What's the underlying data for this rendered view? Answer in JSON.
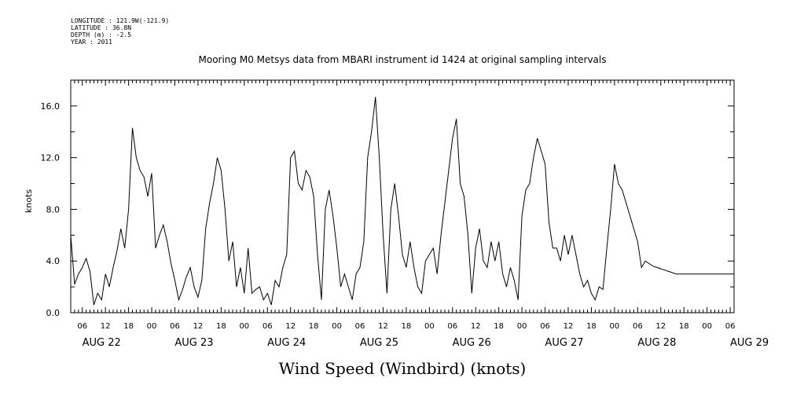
{
  "meta": {
    "longitude": "LONGITUDE : 121.9W(-121.9)",
    "latitude": "LATITUDE : 36.8N",
    "depth": "DEPTH (m) : -2.5",
    "year": "YEAR : 2011"
  },
  "chart_data": {
    "type": "line",
    "title": "Mooring M0 Metsys data from MBARI instrument id 1424 at original sampling intervals",
    "xlabel": "Wind Speed (Windbird) (knots)",
    "ylabel": "knots",
    "ylim": [
      0,
      18
    ],
    "xlim_hours": [
      0,
      172
    ],
    "yticks": [
      "0.0",
      "4.0",
      "8.0",
      "12.0",
      "16.0"
    ],
    "ytick_values": [
      0,
      4,
      8,
      12,
      16
    ],
    "hour_tick_labels": [
      "06",
      "12",
      "18",
      "00",
      "06",
      "12",
      "18",
      "00",
      "06",
      "12",
      "18",
      "00",
      "06",
      "12",
      "18",
      "00",
      "06",
      "12",
      "18",
      "00",
      "06",
      "12",
      "18",
      "00",
      "06",
      "12",
      "18",
      "00",
      "06",
      "12",
      "18",
      "00"
    ],
    "day_labels": [
      "AUG 22",
      "AUG 23",
      "AUG 24",
      "AUG 25",
      "AUG 26",
      "AUG 27",
      "AUG 28",
      "AUG 29"
    ],
    "x_start": "AUG 22 03:00",
    "series": [
      {
        "x_hours": [
          0,
          1,
          2,
          3,
          4,
          5,
          6,
          7,
          8,
          9,
          10,
          11,
          12,
          13,
          14,
          15,
          16,
          17,
          18,
          19,
          20,
          21,
          22,
          23,
          24,
          25,
          26,
          27,
          28,
          29,
          30,
          31,
          32,
          33,
          34,
          35,
          36,
          37,
          38,
          39,
          40,
          41,
          42,
          43,
          44,
          45,
          46,
          47,
          48,
          49,
          50,
          51,
          52,
          53,
          54,
          55,
          56,
          57,
          58,
          59,
          60,
          61,
          62,
          63,
          64,
          65,
          66,
          67,
          68,
          69,
          70,
          71,
          72,
          73,
          74,
          75,
          76,
          77,
          78,
          79,
          80,
          81,
          82,
          83,
          84,
          85,
          86,
          87,
          88,
          89,
          90,
          91,
          92,
          93,
          94,
          95,
          96,
          97,
          98,
          99,
          100,
          101,
          102,
          103,
          104,
          105,
          106,
          107,
          108,
          109,
          110,
          111,
          112,
          113,
          114,
          115,
          116,
          117,
          118,
          119,
          120,
          121,
          122,
          123,
          124,
          125,
          126,
          127,
          128,
          129,
          130,
          131,
          132,
          133,
          134,
          135,
          136,
          137,
          138,
          139,
          140,
          141,
          142,
          143,
          144,
          145,
          146,
          147,
          148,
          149,
          150,
          151,
          152,
          153,
          154,
          155,
          156,
          157,
          158,
          159,
          160,
          161,
          162,
          163,
          164,
          165,
          166,
          167,
          168,
          169,
          170,
          171,
          172
        ],
        "values": [
          6.0,
          2.2,
          3.0,
          3.5,
          4.2,
          3.2,
          0.6,
          1.5,
          1.0,
          3.0,
          2.0,
          3.5,
          4.8,
          6.5,
          5.0,
          8.0,
          14.3,
          12.0,
          11.0,
          10.5,
          9.0,
          10.8,
          5.0,
          6.0,
          6.8,
          5.5,
          3.8,
          2.5,
          1.0,
          1.8,
          2.8,
          3.5,
          2.0,
          1.2,
          2.5,
          6.5,
          8.5,
          10.0,
          12.0,
          11.0,
          8.0,
          4.0,
          5.5,
          2.0,
          3.5,
          1.5,
          5.0,
          1.5,
          1.8,
          2.0,
          1.0,
          1.5,
          0.6,
          2.5,
          2.0,
          3.5,
          4.5,
          12.0,
          12.5,
          10.0,
          9.5,
          11.0,
          10.5,
          9.0,
          4.5,
          1.0,
          8.0,
          9.5,
          7.5,
          5.0,
          2.0,
          3.0,
          2.0,
          1.0,
          3.0,
          3.5,
          5.5,
          12.0,
          14.0,
          16.7,
          12.0,
          6.0,
          1.5,
          8.0,
          10.0,
          7.5,
          4.5,
          3.5,
          5.5,
          3.5,
          2.0,
          1.5,
          4.0,
          4.5,
          5.0,
          3.0,
          6.0,
          8.5,
          11.0,
          13.5,
          15.0,
          10.0,
          9.0,
          6.0,
          1.5,
          5.0,
          6.5,
          4.0,
          3.5,
          5.5,
          4.0,
          5.5,
          3.0,
          2.0,
          3.5,
          2.5,
          1.0,
          7.5,
          9.5,
          10.0,
          12.0,
          13.5,
          12.5,
          11.5,
          7.0,
          5.0,
          5.0,
          4.0,
          6.0,
          4.5,
          6.0,
          4.5,
          3.0,
          2.0,
          2.5,
          1.5,
          1.0,
          2.0,
          1.8,
          5.0,
          8.0,
          11.5,
          10.0,
          9.5,
          8.5,
          7.5,
          6.5,
          5.5,
          3.5,
          4.0,
          3.8,
          3.6,
          3.5,
          3.4,
          3.3,
          3.2,
          3.1,
          3.0,
          3.0,
          3.0,
          3.0,
          3.0,
          3.0,
          3.0,
          3.0,
          3.0,
          3.0,
          3.0,
          3.0,
          3.0,
          3.0,
          3.0,
          3.0
        ]
      }
    ],
    "grid": false
  }
}
